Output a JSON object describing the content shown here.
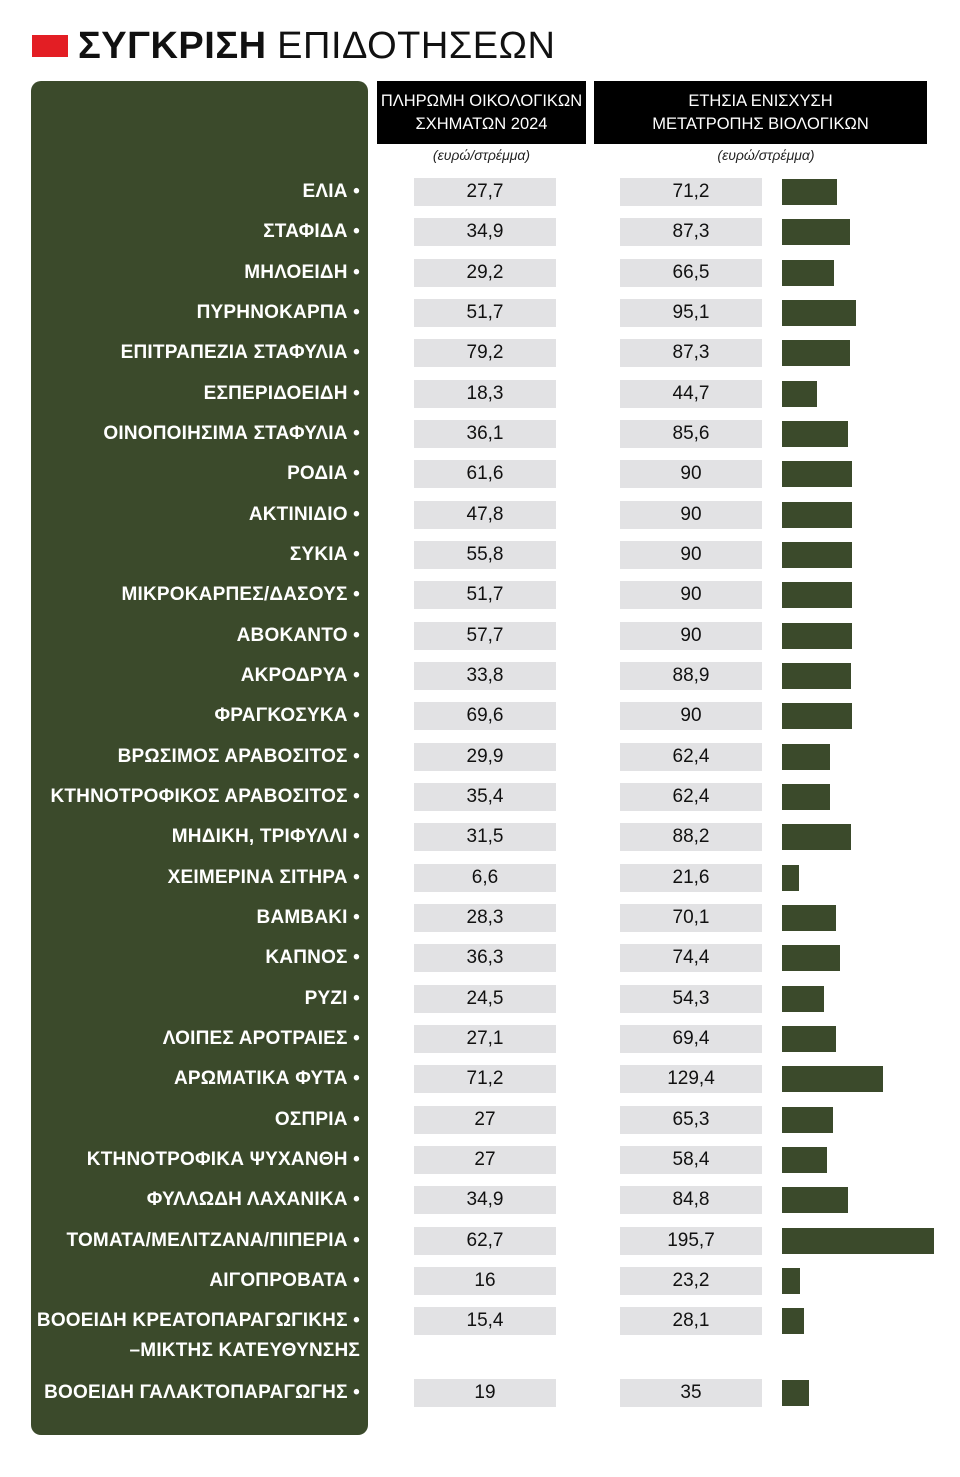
{
  "header": {
    "title_bold": "ΣΥΓΚΡΙΣΗ",
    "title_light": "ΕΠΙΔΟΤΗΣΕΩΝ",
    "accent_color": "#e31e24"
  },
  "columns": {
    "col1_header": "ΠΛΗΡΩΜΗ ΟΙΚΟΛΟΓΙΚΩΝ\nΣΧΗΜΑΤΩΝ 2024",
    "col2_header": "ΕΤΗΣΙΑ ΕΝΙΣΧΥΣΗ\nΜΕΤΑΤΡΟΠΗΣ ΒΙΟΛΟΓΙΚΩΝ",
    "col1_unit": "(ευρώ/στρέμμα)",
    "col2_unit": "(ευρώ/στρέμμα)"
  },
  "colors": {
    "panel": "#3b4a2b",
    "cell": "#e2e2e4",
    "header_bg": "#000000"
  },
  "chart_data": {
    "type": "table",
    "categories": [
      "ΕΛΙΑ",
      "ΣΤΑΦΙΔΑ",
      "ΜΗΛΟΕΙΔΗ",
      "ΠΥΡΗΝΟΚΑΡΠΑ",
      "ΕΠΙΤΡΑΠΕΖΙΑ ΣΤΑΦΥΛΙΑ",
      "ΕΣΠΕΡΙΔΟΕΙΔΗ",
      "ΟΙΝΟΠΟΙΗΣΙΜΑ ΣΤΑΦΥΛΙΑ",
      "ΡΟΔΙΑ",
      "ΑΚΤΙΝΙΔΙΟ",
      "ΣΥΚΙΑ",
      "ΜΙΚΡΟΚΑΡΠΕΣ/ΔΑΣΟΥΣ",
      "ΑΒΟΚΑΝΤΟ",
      "ΑΚΡΟΔΡΥΑ",
      "ΦΡΑΓΚΟΣΥΚΑ",
      "ΒΡΩΣΙΜΟΣ ΑΡΑΒΟΣΙΤΟΣ",
      "ΚΤΗΝΟΤΡΟΦΙΚΟΣ ΑΡΑΒΟΣΙΤΟΣ",
      "ΜΗΔΙΚΗ, ΤΡΙΦΥΛΛΙ",
      "ΧΕΙΜΕΡΙΝΑ ΣΙΤΗΡΑ",
      "ΒΑΜΒΑΚΙ",
      "ΚΑΠΝΟΣ",
      "ΡΥΖΙ",
      "ΛΟΙΠΕΣ ΑΡΟΤΡΑΙΕΣ",
      "ΑΡΩΜΑΤΙΚΑ ΦΥΤΑ",
      "ΟΣΠΡΙΑ",
      "ΚΤΗΝΟΤΡΟΦΙΚΑ ΨΥΧΑΝΘΗ",
      "ΦΥΛΛΩΔΗ ΛΑΧΑΝΙΚΑ",
      "ΤΟΜΑΤΑ/ΜΕΛΙΤΖΑΝΑ/ΠΙΠΕΡΙΑ",
      "ΑΙΓΟΠΡΟΒΑΤΑ",
      "ΒΟΟΕΙΔΗ ΚΡΕΑΤΟΠΑΡΑΓΩΓΙΚΗΣ •\n–ΜΙΚΤΗΣ ΚΑΤΕΥΘΥΝΣΗΣ",
      "ΒΟΟΕΙΔΗ ΓΑΛΑΚΤΟΠΑΡΑΓΩΓΗΣ"
    ],
    "series": [
      {
        "name": "ΠΛΗΡΩΜΗ ΟΙΚΟΛΟΓΙΚΩΝ ΣΧΗΜΑΤΩΝ 2024",
        "labels": [
          "27,7",
          "34,9",
          "29,2",
          "51,7",
          "79,2",
          "18,3",
          "36,1",
          "61,6",
          "47,8",
          "55,8",
          "51,7",
          "57,7",
          "33,8",
          "69,6",
          "29,9",
          "35,4",
          "31,5",
          "6,6",
          "28,3",
          "36,3",
          "24,5",
          "27,1",
          "71,2",
          "27",
          "27",
          "34,9",
          "62,7",
          "16",
          "15,4",
          "19"
        ],
        "values": [
          27.7,
          34.9,
          29.2,
          51.7,
          79.2,
          18.3,
          36.1,
          61.6,
          47.8,
          55.8,
          51.7,
          57.7,
          33.8,
          69.6,
          29.9,
          35.4,
          31.5,
          6.6,
          28.3,
          36.3,
          24.5,
          27.1,
          71.2,
          27,
          27,
          34.9,
          62.7,
          16,
          15.4,
          19
        ]
      },
      {
        "name": "ΕΤΗΣΙΑ ΕΝΙΣΧΥΣΗ ΜΕΤΑΤΡΟΠΗΣ ΒΙΟΛΟΓΙΚΩΝ",
        "labels": [
          "71,2",
          "87,3",
          "66,5",
          "95,1",
          "87,3",
          "44,7",
          "85,6",
          "90",
          "90",
          "90",
          "90",
          "90",
          "88,9",
          "90",
          "62,4",
          "62,4",
          "88,2",
          "21,6",
          "70,1",
          "74,4",
          "54,3",
          "69,4",
          "129,4",
          "65,3",
          "58,4",
          "84,8",
          "195,7",
          "23,2",
          "28,1",
          "35"
        ],
        "values": [
          71.2,
          87.3,
          66.5,
          95.1,
          87.3,
          44.7,
          85.6,
          90,
          90,
          90,
          90,
          90,
          88.9,
          90,
          62.4,
          62.4,
          88.2,
          21.6,
          70.1,
          74.4,
          54.3,
          69.4,
          129.4,
          65.3,
          58.4,
          84.8,
          195.7,
          23.2,
          28.1,
          35
        ]
      }
    ],
    "bars_series": 1
  }
}
